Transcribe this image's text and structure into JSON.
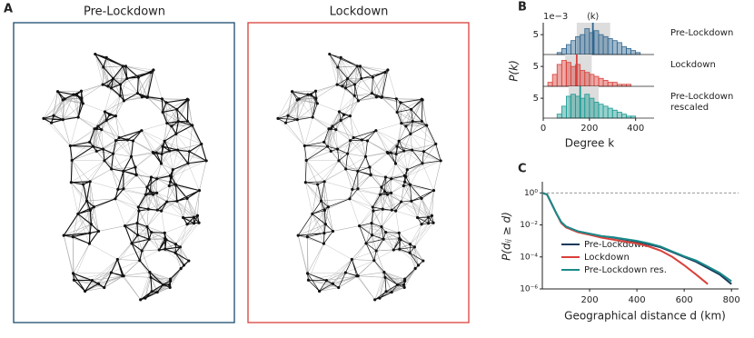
{
  "network_panel": {
    "label": "A",
    "titles": [
      "Pre-Lockdown",
      "Lockdown"
    ]
  },
  "chart_data": [
    {
      "type": "histogram",
      "panel_label": "B",
      "multiplier_label": "1e−3",
      "mean_label": "⟨k⟩",
      "xlabel": "Degree k",
      "ylabel": "P(k)",
      "xlim": [
        0,
        480
      ],
      "xticks": [
        0,
        200,
        400
      ],
      "ylim": [
        0,
        8
      ],
      "yticks": [
        5
      ],
      "bins": [
        20,
        40,
        60,
        80,
        100,
        120,
        140,
        160,
        180,
        200,
        220,
        240,
        260,
        280,
        300,
        320,
        340,
        360,
        380,
        400,
        420
      ],
      "series": [
        {
          "name": "Pre-Lockdown",
          "color": "#2f6690",
          "mean": 215,
          "band": [
            145,
            290
          ],
          "values": [
            0,
            0,
            0.5,
            1.5,
            2.5,
            3.5,
            4.5,
            5,
            6.5,
            5.5,
            6,
            5,
            4.5,
            4,
            3.5,
            3,
            2,
            1.5,
            1,
            0.5
          ]
        },
        {
          "name": "Lockdown",
          "color": "#d9403a",
          "mean": 145,
          "band": [
            95,
            210
          ],
          "values": [
            1,
            3,
            5.5,
            6.5,
            6,
            5,
            5.5,
            4,
            3.5,
            3,
            2.5,
            2,
            1.5,
            1,
            1,
            0.5,
            0.5,
            0.5,
            0,
            0
          ]
        },
        {
          "name": "Pre-Lockdown rescaled",
          "color": "#1a9a92",
          "mean": 160,
          "band": [
            110,
            240
          ],
          "values": [
            0,
            0,
            1,
            3,
            5.5,
            6,
            5.5,
            5,
            6,
            5,
            4,
            3.5,
            3,
            2.5,
            2,
            1.5,
            1,
            0.5,
            0.5,
            0
          ]
        }
      ]
    },
    {
      "type": "line",
      "panel_label": "C",
      "xlabel": "Geographical distance d (km)",
      "ylabel": "P(dᵢⱼ ≥ d)",
      "log_y": true,
      "hline": 1,
      "legend": "lower left",
      "xlim": [
        0,
        830
      ],
      "xticks": [
        200,
        400,
        600,
        800
      ],
      "ylim": [
        1e-06,
        5
      ],
      "yticks": [
        {
          "value": 1,
          "label": "10⁰"
        },
        {
          "value": 0.01,
          "label": "10⁻²"
        },
        {
          "value": 0.0001,
          "label": "10⁻⁴"
        },
        {
          "value": 1e-06,
          "label": "10⁻⁶"
        }
      ],
      "x": [
        0,
        20,
        40,
        60,
        80,
        100,
        150,
        200,
        250,
        300,
        350,
        400,
        450,
        500,
        550,
        600,
        650,
        700,
        750,
        800
      ],
      "series": [
        {
          "name": "Pre-Lockdown",
          "color": "#1b3a5c",
          "values": [
            1,
            0.8,
            0.2,
            0.05,
            0.015,
            0.008,
            0.004,
            0.0028,
            0.002,
            0.0016,
            0.0012,
            0.0009,
            0.0006,
            0.0004,
            0.0002,
            0.0001,
            5e-05,
            2e-05,
            8e-06,
            2e-06
          ]
        },
        {
          "name": "Lockdown",
          "color": "#d9403a",
          "values": [
            1,
            0.8,
            0.2,
            0.05,
            0.013,
            0.007,
            0.0035,
            0.0024,
            0.0016,
            0.0012,
            0.0009,
            0.0007,
            0.00045,
            0.00025,
            0.0001,
            3e-05,
            8e-06,
            2e-06,
            null,
            null
          ]
        },
        {
          "name": "Pre-Lockdown res.",
          "color": "#1a8a8a",
          "values": [
            1,
            0.8,
            0.2,
            0.05,
            0.015,
            0.008,
            0.004,
            0.0028,
            0.002,
            0.0017,
            0.0013,
            0.001,
            0.0007,
            0.00045,
            0.00022,
            0.00011,
            6e-05,
            2.5e-05,
            1e-05,
            3e-06
          ]
        }
      ]
    }
  ]
}
